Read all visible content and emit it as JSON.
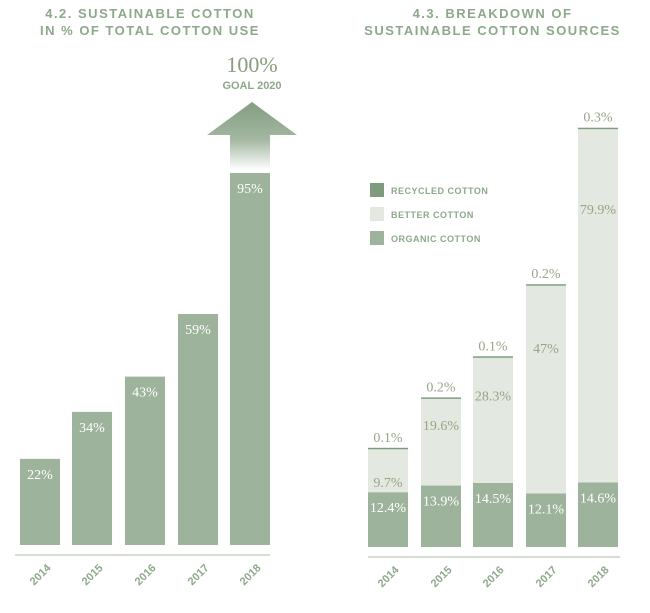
{
  "colors": {
    "title": "#8ea88b",
    "organic": "#9db39c",
    "better": "#e3e8e0",
    "recycled": "#7f9b7e",
    "label_olive": "#9aa487",
    "axis": "#c9d4c6"
  },
  "chart_data": [
    {
      "type": "bar",
      "title_line1": "4.2. SUSTAINABLE COTTON",
      "title_line2": "IN % OF TOTAL COTTON USE",
      "categories": [
        "2014",
        "2015",
        "2016",
        "2017",
        "2018"
      ],
      "values": [
        22,
        34,
        43,
        59,
        95
      ],
      "value_labels": [
        "22%",
        "34%",
        "43%",
        "59%",
        "95%"
      ],
      "ylim": [
        0,
        100
      ],
      "goal": {
        "value": 100,
        "label": "100%",
        "caption": "GOAL 2020"
      }
    },
    {
      "type": "bar",
      "stacked": true,
      "title_line1": "4.3. BREAKDOWN OF",
      "title_line2": "SUSTAINABLE COTTON SOURCES",
      "categories": [
        "2014",
        "2015",
        "2016",
        "2017",
        "2018"
      ],
      "legend": [
        "RECYCLED COTTON",
        "BETTER COTTON",
        "ORGANIC COTTON"
      ],
      "legend_placement": "top-left",
      "series": [
        {
          "name": "ORGANIC COTTON",
          "values": [
            12.4,
            13.9,
            14.5,
            12.1,
            14.6
          ],
          "labels": [
            "12.4%",
            "13.9%",
            "14.5%",
            "12.1%",
            "14.6%"
          ]
        },
        {
          "name": "BETTER COTTON",
          "values": [
            9.7,
            19.6,
            28.3,
            47,
            79.9
          ],
          "labels": [
            "9.7%",
            "19.6%",
            "28.3%",
            "47%",
            "79.9%"
          ]
        },
        {
          "name": "RECYCLED COTTON",
          "values": [
            0.1,
            0.2,
            0.1,
            0.2,
            0.3
          ],
          "labels": [
            "0.1%",
            "0.2%",
            "0.1%",
            "0.2%",
            "0.3%"
          ]
        }
      ]
    }
  ]
}
